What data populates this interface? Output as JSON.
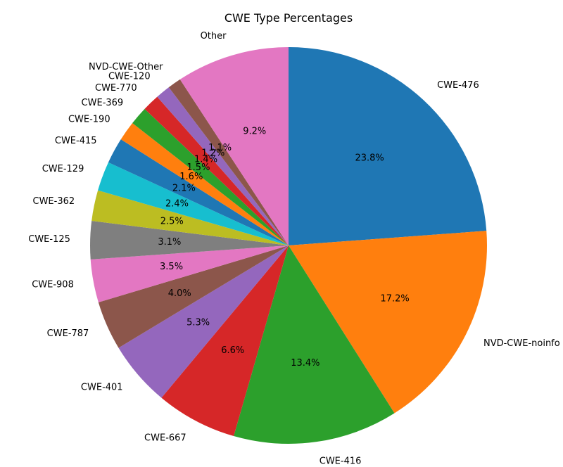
{
  "chart_data": {
    "type": "pie",
    "title": "CWE Type Percentages",
    "start_angle_deg": 90,
    "direction": "clockwise",
    "categories": [
      "CWE-476",
      "NVD-CWE-noinfo",
      "CWE-416",
      "CWE-667",
      "CWE-401",
      "CWE-787",
      "CWE-908",
      "CWE-125",
      "CWE-362",
      "CWE-129",
      "CWE-415",
      "CWE-190",
      "CWE-369",
      "CWE-770",
      "CWE-120",
      "NVD-CWE-Other",
      "Other"
    ],
    "values": [
      23.8,
      17.2,
      13.4,
      6.6,
      5.3,
      4.0,
      3.5,
      3.1,
      2.5,
      2.4,
      2.1,
      1.6,
      1.5,
      1.4,
      1.2,
      1.1,
      9.2
    ],
    "value_labels": [
      "23.8%",
      "17.2%",
      "13.4%",
      "6.6%",
      "5.3%",
      "4.0%",
      "3.5%",
      "3.1%",
      "2.5%",
      "2.4%",
      "2.1%",
      "1.6%",
      "1.5%",
      "1.4%",
      "1.2%",
      "1.1%",
      "9.2%"
    ],
    "colors": [
      "#1f77b4",
      "#ff7f0e",
      "#2ca02c",
      "#d62728",
      "#9467bd",
      "#8c564b",
      "#e377c2",
      "#7f7f7f",
      "#bcbd22",
      "#17becf",
      "#1f77b4",
      "#ff7f0e",
      "#2ca02c",
      "#d62728",
      "#9467bd",
      "#8c564b",
      "#e377c2"
    ]
  }
}
